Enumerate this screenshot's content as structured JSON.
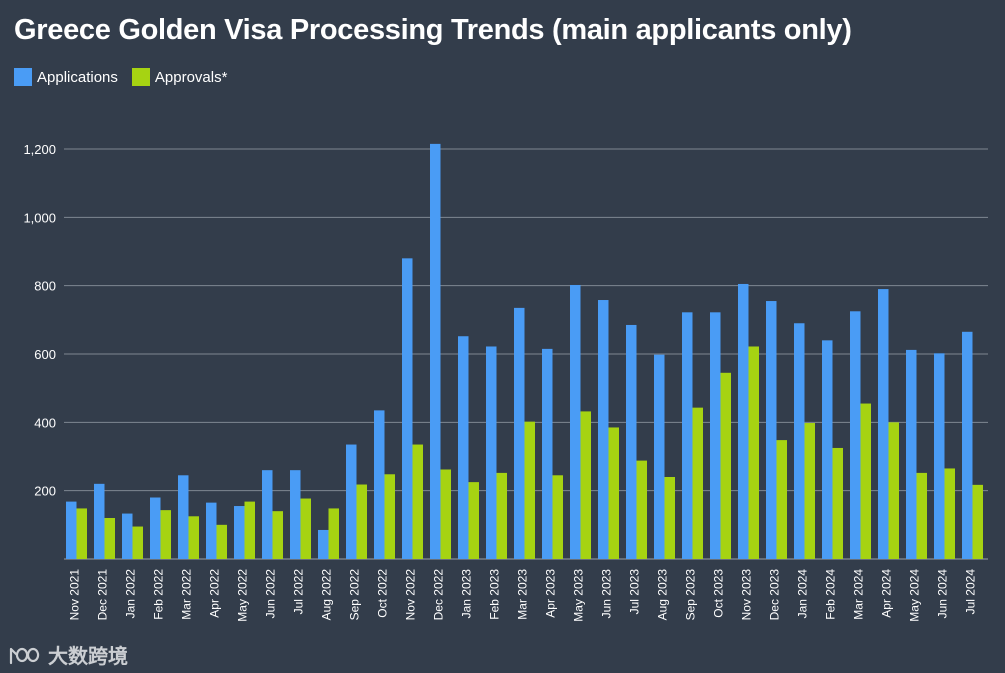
{
  "title": "Greece Golden Visa Processing Trends (main applicants only)",
  "watermark": "大数跨境",
  "chart_data": {
    "type": "bar",
    "title": "Greece Golden Visa Processing Trends (main applicants only)",
    "xlabel": "",
    "ylabel": "",
    "ylim": [
      0,
      1200
    ],
    "yticks": [
      "200",
      "400",
      "600",
      "800",
      "1,000",
      "1,200"
    ],
    "ytick_values": [
      200,
      400,
      600,
      800,
      1000,
      1200
    ],
    "legend_position": "top-left",
    "grid": true,
    "categories": [
      "Nov 2021",
      "Dec 2021",
      "Jan 2022",
      "Feb 2022",
      "Mar 2022",
      "Apr 2022",
      "May 2022",
      "Jun 2022",
      "Jul 2022",
      "Aug 2022",
      "Sep 2022",
      "Oct 2022",
      "Nov 2022",
      "Dec 2022",
      "Jan 2023",
      "Feb 2023",
      "Mar 2023",
      "Apr 2023",
      "May 2023",
      "Jun 2023",
      "Jul 2023",
      "Aug 2023",
      "Sep 2023",
      "Oct 2023",
      "Nov 2023",
      "Dec 2023",
      "Jan 2024",
      "Feb 2024",
      "Mar 2024",
      "Apr 2024",
      "May 2024",
      "Jun 2024",
      "Jul 2024"
    ],
    "series": [
      {
        "name": "Applications",
        "color": "#4a9cf5",
        "values": [
          168,
          220,
          133,
          180,
          245,
          165,
          155,
          260,
          260,
          85,
          335,
          435,
          880,
          1215,
          652,
          622,
          735,
          615,
          802,
          758,
          685,
          598,
          722,
          722,
          805,
          755,
          690,
          640,
          725,
          790,
          612,
          602,
          665
        ]
      },
      {
        "name": "Approvals*",
        "color": "#a6d312",
        "values": [
          148,
          120,
          95,
          143,
          125,
          100,
          168,
          140,
          177,
          148,
          218,
          248,
          335,
          262,
          225,
          252,
          402,
          245,
          432,
          385,
          288,
          240,
          443,
          545,
          622,
          348,
          398,
          325,
          455,
          400,
          252,
          265,
          217
        ]
      }
    ]
  }
}
